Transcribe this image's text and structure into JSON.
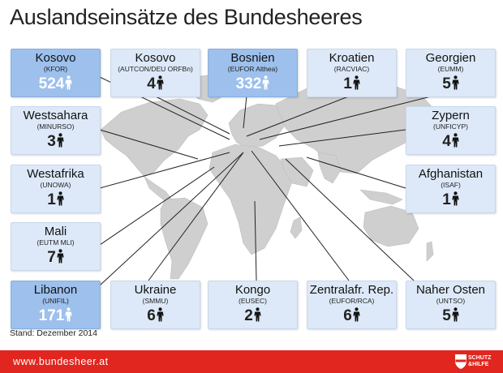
{
  "title": "Auslandseinsätze des Bundesheeres",
  "stand": "Stand: Dezember 2014",
  "footer": {
    "url": "www.bundesheer.at",
    "logo_line1": "SCHUTZ",
    "logo_line2": "HILFE",
    "logo_conjunction": "&"
  },
  "missions": [
    {
      "name": "Kosovo",
      "sub": "(KFOR)",
      "count": "524"
    },
    {
      "name": "Kosovo",
      "sub": "(AUTCON/DEU ORFBn)",
      "count": "4"
    },
    {
      "name": "Bosnien",
      "sub": "(EUFOR Althea)",
      "count": "332"
    },
    {
      "name": "Kroatien",
      "sub": "(RACVIAC)",
      "count": "1"
    },
    {
      "name": "Georgien",
      "sub": "(EUMM)",
      "count": "5"
    },
    {
      "name": "Westsahara",
      "sub": "(MINURSO)",
      "count": "3"
    },
    {
      "name": "Zypern",
      "sub": "(UNFICYP)",
      "count": "4"
    },
    {
      "name": "Westafrika",
      "sub": "(UNOWA)",
      "count": "1"
    },
    {
      "name": "Afghanistan",
      "sub": "(ISAF)",
      "count": "1"
    },
    {
      "name": "Mali",
      "sub": "(EUTM MLI)",
      "count": "7"
    },
    {
      "name": "Libanon",
      "sub": "(UNIFIL)",
      "count": "171"
    },
    {
      "name": "Ukraine",
      "sub": "(SMMU)",
      "count": "6"
    },
    {
      "name": "Kongo",
      "sub": "(EUSEC)",
      "count": "2"
    },
    {
      "name": "Zentralafr. Rep.",
      "sub": "(EUFOR/RCA)",
      "count": "6"
    },
    {
      "name": "Naher Osten",
      "sub": "(UNTSO)",
      "count": "5"
    }
  ],
  "colors": {
    "box_light": "#dde9f8",
    "box_dark": "#9dc0ec",
    "footer": "#e0261f",
    "map": "#cfcfcf",
    "connector": "#222222"
  },
  "icons": {
    "soldier": "soldier-figure-icon",
    "logo": "bundesheer-shield-icon"
  }
}
